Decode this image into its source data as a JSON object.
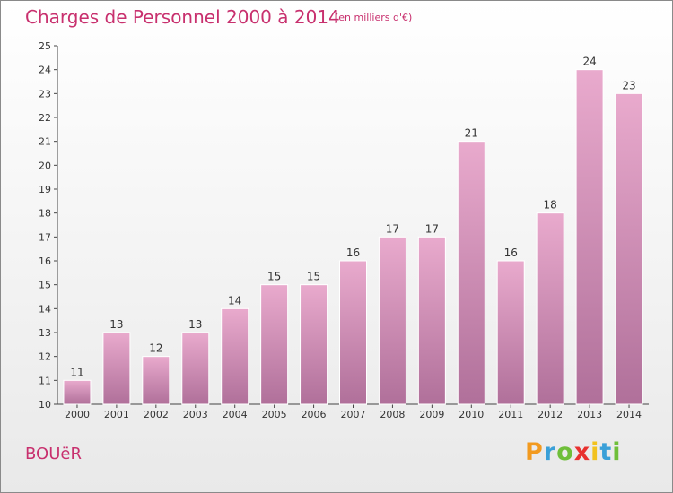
{
  "title": "Charges de Personnel 2000 à 2014",
  "subtitle": "(en milliers d'€)",
  "commune": "BOUëR",
  "logo": {
    "letters": [
      "P",
      "r",
      "o",
      "x",
      "i",
      "t",
      "i"
    ],
    "colors": [
      "#f29a1f",
      "#3aa0d8",
      "#6fbf3a",
      "#e8312f",
      "#f2c21f",
      "#3aa0d8",
      "#6fbf3a"
    ]
  },
  "colors": {
    "accent": "#c8306e",
    "bar_light": "#e8a8cc",
    "bar_dark": "#b0709a"
  },
  "chart_data": {
    "type": "bar",
    "categories": [
      "2000",
      "2001",
      "2002",
      "2003",
      "2004",
      "2005",
      "2006",
      "2007",
      "2008",
      "2009",
      "2010",
      "2011",
      "2012",
      "2013",
      "2014"
    ],
    "values": [
      11,
      13,
      12,
      13,
      14,
      15,
      15,
      16,
      17,
      17,
      21,
      16,
      18,
      24,
      23
    ],
    "title": "Charges de Personnel 2000 à 2014",
    "subtitle": "(en milliers d'€)",
    "xlabel": "",
    "ylabel": "",
    "ylim": [
      10,
      25
    ],
    "yticks": [
      10,
      11,
      12,
      13,
      14,
      15,
      16,
      17,
      18,
      19,
      20,
      21,
      22,
      23,
      24,
      25
    ],
    "grid": false,
    "data_labels": true
  }
}
